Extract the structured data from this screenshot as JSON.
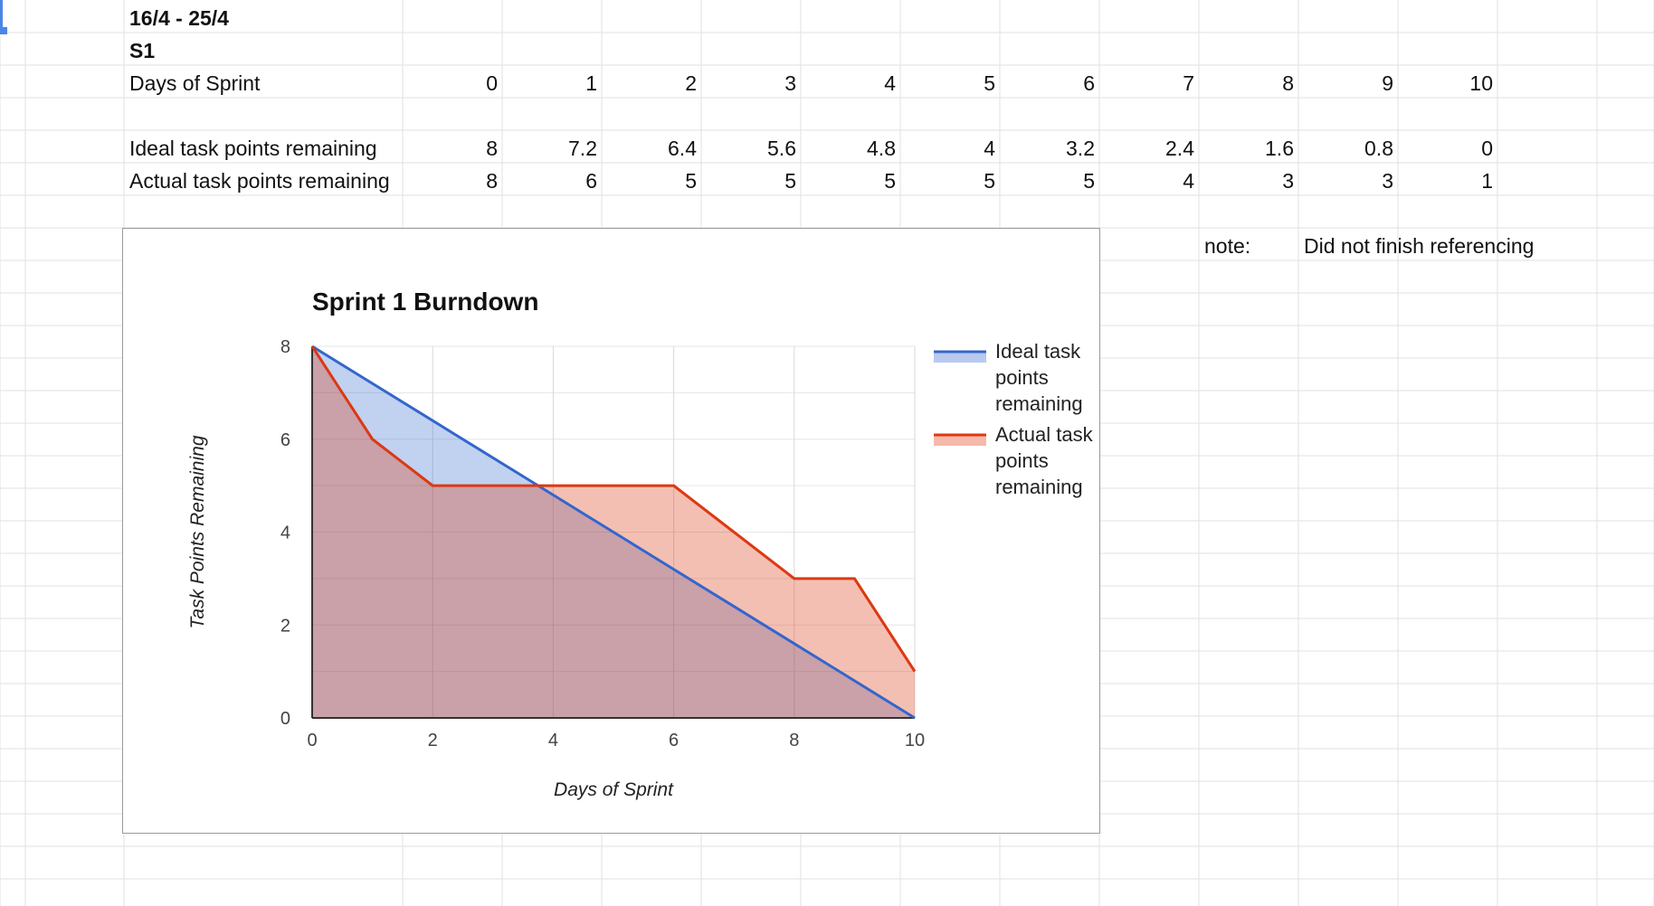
{
  "sheet": {
    "date_range": "16/4 - 25/4",
    "sprint_id": "S1",
    "days_label": "Days of Sprint",
    "days": [
      "0",
      "1",
      "2",
      "3",
      "4",
      "5",
      "6",
      "7",
      "8",
      "9",
      "10"
    ],
    "ideal_label": "Ideal task points remaining",
    "ideal_values": [
      "8",
      "7.2",
      "6.4",
      "5.6",
      "4.8",
      "4",
      "3.2",
      "2.4",
      "1.6",
      "0.8",
      "0"
    ],
    "actual_label": "Actual task points remaining",
    "actual_values": [
      "8",
      "6",
      "5",
      "5",
      "5",
      "5",
      "5",
      "4",
      "3",
      "3",
      "1"
    ],
    "note_label": "note:",
    "note_text": "Did not finish referencing"
  },
  "colors": {
    "grid_line": "#e2e2e2",
    "selection": "#4a86e8",
    "ideal_line": "#3366cc",
    "ideal_fill": "#b9c9ee",
    "actual_line": "#dc3912",
    "actual_fill": "#f4b9ab",
    "overlap_fill": "#c7a1ab"
  },
  "chart_data": {
    "type": "area",
    "title": "Sprint 1 Burndown",
    "xlabel": "Days of Sprint",
    "ylabel": "Task Points Remaining",
    "x": [
      0,
      1,
      2,
      3,
      4,
      5,
      6,
      7,
      8,
      9,
      10
    ],
    "xlim": [
      0,
      10
    ],
    "ylim": [
      0,
      8
    ],
    "x_ticks": [
      "0",
      "2",
      "4",
      "6",
      "8",
      "10"
    ],
    "y_ticks": [
      "0",
      "2",
      "4",
      "6",
      "8"
    ],
    "grid": true,
    "legend_position": "right",
    "series": [
      {
        "name": "Ideal task points remaining",
        "legend_lines": [
          "Ideal task",
          "points",
          "remaining"
        ],
        "values": [
          8,
          7.2,
          6.4,
          5.6,
          4.8,
          4,
          3.2,
          2.4,
          1.6,
          0.8,
          0
        ]
      },
      {
        "name": "Actual task points remaining",
        "legend_lines": [
          "Actual task",
          "points",
          "remaining"
        ],
        "values": [
          8,
          6,
          5,
          5,
          5,
          5,
          5,
          4,
          3,
          3,
          1
        ]
      }
    ]
  }
}
